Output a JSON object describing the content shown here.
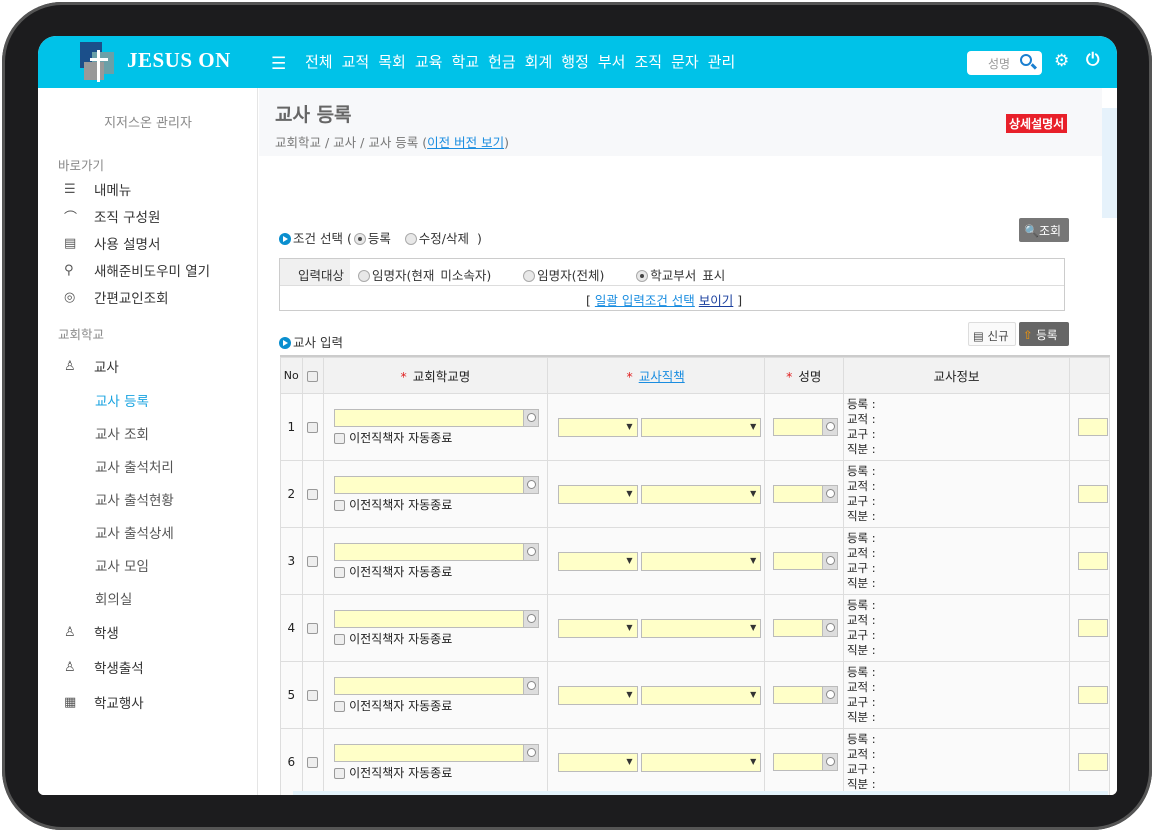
{
  "header": {
    "brand": "JESUS ON",
    "nav": [
      "전체",
      "교적",
      "목회",
      "교육",
      "학교",
      "헌금",
      "회계",
      "행정",
      "부서",
      "조직",
      "문자",
      "관리"
    ],
    "search_placeholder": "성명",
    "accent": "#00c2e8"
  },
  "sidebar": {
    "user": "지저스온 관리자",
    "section1": "바로가기",
    "shortcuts": [
      {
        "icon": "list-icon",
        "label": "내메뉴"
      },
      {
        "icon": "org-icon",
        "label": "조직 구성원"
      },
      {
        "icon": "book-icon",
        "label": "사용 설명서"
      },
      {
        "icon": "wand-icon",
        "label": "새해준비도우미 열기"
      },
      {
        "icon": "eye-icon",
        "label": "간편교인조회"
      }
    ],
    "section2": "교회학교",
    "teacher": "교사",
    "teacher_sub": [
      "교사 등록",
      "교사 조회",
      "교사 출석처리",
      "교사 출석현황",
      "교사 출석상세",
      "교사 모임",
      "회의실"
    ],
    "active": "교사 등록",
    "others": [
      {
        "icon": "user-icon",
        "label": "학생"
      },
      {
        "icon": "user-icon",
        "label": "학생출석"
      },
      {
        "icon": "calendar-icon",
        "label": "학교행사"
      }
    ]
  },
  "page": {
    "title": "교사 등록",
    "breadcrumb": "교회학교 / 교사 / 교사 등록",
    "prev_link": "이전 버전 보기",
    "manual": "상세설명서"
  },
  "condition": {
    "label": "조건 선택",
    "open": "(",
    "close": ")",
    "options": [
      "등록",
      "수정/삭제"
    ],
    "selected": "등록",
    "search_button": "조회"
  },
  "target": {
    "label": "입력대상",
    "options": [
      "임명자(현재 미소속자)",
      "임명자(전체)",
      "학교부서 표시"
    ],
    "selected": "학교부서 표시",
    "bulk_prefix": "일괄 입력조건 선택",
    "bulk_link": "보이기"
  },
  "teacher_input": {
    "label": "교사 입력",
    "new_button": "신규",
    "register_button": "등록"
  },
  "table": {
    "headers": {
      "no": "No",
      "school": "교회학교명",
      "position": "교사직책",
      "name": "성명",
      "info": "교사정보"
    },
    "auto_end_label": "이전직책자 자동종료",
    "info_labels": [
      "등록 :",
      "교적 :",
      "교구 :",
      "직분 :"
    ],
    "rows": [
      {
        "no": "1"
      },
      {
        "no": "2"
      },
      {
        "no": "3"
      },
      {
        "no": "4"
      },
      {
        "no": "5"
      },
      {
        "no": "6"
      }
    ]
  }
}
